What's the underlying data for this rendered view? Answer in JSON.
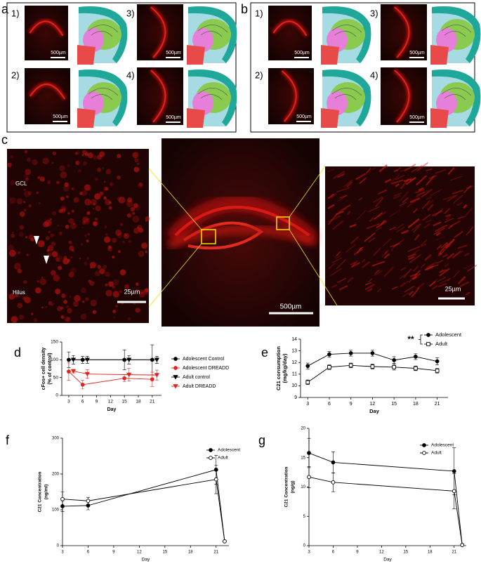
{
  "figure": {
    "panel_a": {
      "label": "a",
      "items": [
        {
          "number": "1)",
          "scale_bar": "500µm"
        },
        {
          "number": "2)",
          "scale_bar": "500µm"
        },
        {
          "number": "3)",
          "scale_bar": "500µm"
        },
        {
          "number": "4)",
          "scale_bar": "500µm"
        }
      ]
    },
    "panel_b": {
      "label": "b",
      "items": [
        {
          "number": "1)",
          "scale_bar": "500µm"
        },
        {
          "number": "2)",
          "scale_bar": "500µm"
        },
        {
          "number": "3)",
          "scale_bar": "500µm"
        },
        {
          "number": "4)",
          "scale_bar": "500µm"
        }
      ]
    },
    "panel_c": {
      "label": "c",
      "left": {
        "region_top": "GCL",
        "region_bottom": "Hilus",
        "scale_bar": "25µm"
      },
      "middle": {
        "scale_bar": "500µm"
      },
      "right": {
        "scale_bar": "25µm"
      }
    }
  },
  "chart_data": [
    {
      "type": "line",
      "panel_label": "d",
      "xlabel": "Day",
      "ylabel": [
        "cFos+ cell density",
        "(% of control)"
      ],
      "xlim": [
        1.5,
        23
      ],
      "ylim": [
        0,
        150
      ],
      "xticks": [
        3,
        6,
        9,
        12,
        15,
        18,
        21
      ],
      "yticks": [
        0,
        50,
        100,
        150
      ],
      "series": [
        {
          "name": "Adolescent Control",
          "color": "#000000",
          "marker": "circle",
          "filled": true,
          "x": [
            3,
            6,
            15,
            21
          ],
          "values": [
            100,
            100,
            100,
            100
          ],
          "errors": [
            22,
            10,
            28,
            42
          ]
        },
        {
          "name": "Adolescent DREADD",
          "color": "#e3241f",
          "marker": "circle",
          "filled": true,
          "x": [
            3,
            6,
            15,
            21
          ],
          "values": [
            67,
            30,
            48,
            45
          ],
          "errors": [
            25,
            12,
            10,
            20
          ]
        },
        {
          "name": "Adult control",
          "color": "#000000",
          "marker": "triangle-down",
          "filled": true,
          "x": [
            4,
            7,
            16,
            22
          ],
          "values": [
            100,
            100,
            100,
            100
          ],
          "errors": [
            12,
            10,
            12,
            10
          ]
        },
        {
          "name": "Adult DREADD",
          "color": "#e3241f",
          "marker": "triangle-down",
          "filled": true,
          "x": [
            4,
            7,
            16,
            22
          ],
          "values": [
            68,
            60,
            58,
            57
          ],
          "errors": [
            5,
            12,
            18,
            14
          ]
        }
      ]
    },
    {
      "type": "line",
      "panel_label": "e",
      "xlabel": "Day",
      "ylabel": [
        "C21 consumption",
        "(mg/kg/day)"
      ],
      "annotation": "**",
      "xlim": [
        2,
        22.5
      ],
      "ylim": [
        9,
        14
      ],
      "xticks": [
        3,
        6,
        9,
        12,
        15,
        18,
        21
      ],
      "yticks": [
        9,
        10,
        11,
        12,
        13,
        14
      ],
      "x": [
        3,
        6,
        9,
        12,
        15,
        18,
        21
      ],
      "series": [
        {
          "name": "Adolescent",
          "color": "#000000",
          "marker": "circle",
          "filled": true,
          "values": [
            11.7,
            12.7,
            12.8,
            12.8,
            12.2,
            12.5,
            12.1
          ],
          "errors": [
            0.25,
            0.25,
            0.25,
            0.25,
            0.3,
            0.25,
            0.3
          ]
        },
        {
          "name": "Adult",
          "color": "#000000",
          "marker": "square",
          "filled": false,
          "values": [
            10.3,
            11.6,
            11.75,
            11.65,
            11.6,
            11.5,
            11.3
          ],
          "errors": [
            0.2,
            0.2,
            0.2,
            0.2,
            0.25,
            0.2,
            0.2
          ]
        }
      ]
    },
    {
      "type": "line",
      "panel_label": "f",
      "xlabel": "Day",
      "ylabel": [
        "C21 Concentration",
        "(ng/ml)"
      ],
      "xlim": [
        3,
        22.5
      ],
      "ylim": [
        0,
        300
      ],
      "xticks": [
        3,
        6,
        9,
        12,
        15,
        18,
        21
      ],
      "yticks": [
        0,
        100,
        200,
        300
      ],
      "x": [
        3,
        6,
        21,
        22
      ],
      "series": [
        {
          "name": "Adolescent",
          "color": "#000000",
          "marker": "circle",
          "filled": true,
          "values": [
            110,
            112,
            212,
            12
          ],
          "errors": [
            15,
            12,
            40,
            0
          ]
        },
        {
          "name": "Adult",
          "color": "#000000",
          "marker": "circle",
          "filled": false,
          "values": [
            130,
            125,
            185,
            12
          ],
          "errors": [
            20,
            10,
            40,
            0
          ]
        }
      ]
    },
    {
      "type": "line",
      "panel_label": "g",
      "xlabel": "Day",
      "ylabel": [
        "C21 Concentration",
        "(ng/g)"
      ],
      "xlim": [
        3,
        22.5
      ],
      "ylim": [
        0,
        20
      ],
      "xticks": [
        3,
        6,
        9,
        12,
        15,
        18,
        21
      ],
      "yticks": [
        0,
        5,
        10,
        15,
        20
      ],
      "x": [
        3,
        6,
        21,
        22
      ],
      "series": [
        {
          "name": "Adolescent",
          "color": "#000000",
          "marker": "circle",
          "filled": true,
          "values": [
            15.8,
            14.2,
            12.7,
            0.1
          ],
          "errors": [
            2.5,
            1.8,
            4,
            0
          ]
        },
        {
          "name": "Adult",
          "color": "#000000",
          "marker": "circle",
          "filled": false,
          "values": [
            11.7,
            10.8,
            9.3,
            0.1
          ],
          "errors": [
            1.8,
            1.6,
            3,
            0
          ]
        }
      ]
    }
  ]
}
